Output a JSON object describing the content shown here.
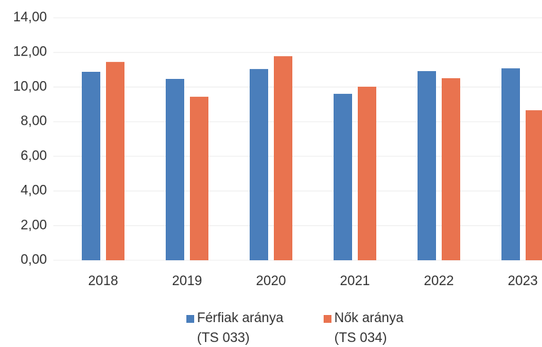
{
  "chart_data": {
    "type": "bar",
    "categories": [
      "2018",
      "2019",
      "2020",
      "2021",
      "2022",
      "2023"
    ],
    "series": [
      {
        "name": "Férfiak aránya (TS 033)",
        "color": "#4a7ebb",
        "values": [
          10.88,
          10.47,
          11.04,
          9.61,
          10.92,
          11.08
        ]
      },
      {
        "name": "Nők aránya (TS 034)",
        "color": "#e9734f",
        "values": [
          11.45,
          9.44,
          11.78,
          10.02,
          10.51,
          8.66
        ]
      }
    ],
    "ylim": [
      0,
      14
    ],
    "yticks": [
      {
        "value": 0,
        "label": "0,00"
      },
      {
        "value": 2,
        "label": "2,00"
      },
      {
        "value": 4,
        "label": "4,00"
      },
      {
        "value": 6,
        "label": "6,00"
      },
      {
        "value": 8,
        "label": "8,00"
      },
      {
        "value": 10,
        "label": "10,00"
      },
      {
        "value": 12,
        "label": "12,00"
      },
      {
        "value": 14,
        "label": "14,00"
      }
    ],
    "grid": true,
    "legend": "bottom"
  }
}
